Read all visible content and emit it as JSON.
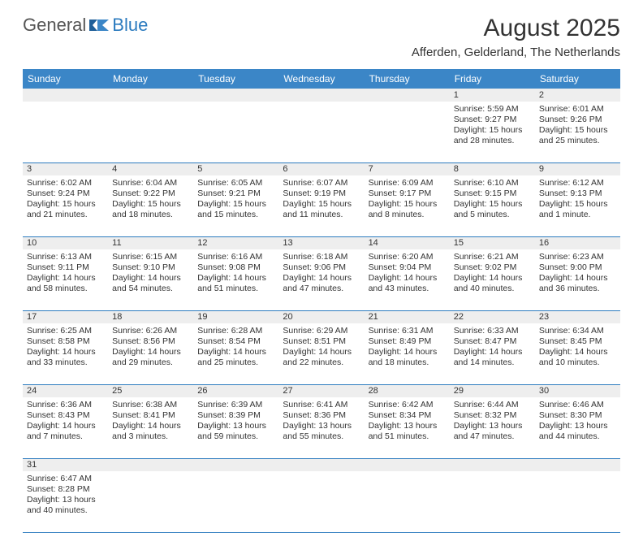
{
  "logo": {
    "textA": "General",
    "textB": "Blue"
  },
  "title": "August 2025",
  "location": "Afferden, Gelderland, The Netherlands",
  "colors": {
    "header_bg": "#3b86c7",
    "rule": "#2c7bbf",
    "daynum_bg": "#eeeeee",
    "text": "#333333",
    "logo_gray": "#555555",
    "logo_blue": "#2c7bbf"
  },
  "day_headers": [
    "Sunday",
    "Monday",
    "Tuesday",
    "Wednesday",
    "Thursday",
    "Friday",
    "Saturday"
  ],
  "weeks": [
    [
      null,
      null,
      null,
      null,
      null,
      {
        "n": "1",
        "sr": "5:59 AM",
        "ss": "9:27 PM",
        "dl": "15 hours and 28 minutes."
      },
      {
        "n": "2",
        "sr": "6:01 AM",
        "ss": "9:26 PM",
        "dl": "15 hours and 25 minutes."
      }
    ],
    [
      {
        "n": "3",
        "sr": "6:02 AM",
        "ss": "9:24 PM",
        "dl": "15 hours and 21 minutes."
      },
      {
        "n": "4",
        "sr": "6:04 AM",
        "ss": "9:22 PM",
        "dl": "15 hours and 18 minutes."
      },
      {
        "n": "5",
        "sr": "6:05 AM",
        "ss": "9:21 PM",
        "dl": "15 hours and 15 minutes."
      },
      {
        "n": "6",
        "sr": "6:07 AM",
        "ss": "9:19 PM",
        "dl": "15 hours and 11 minutes."
      },
      {
        "n": "7",
        "sr": "6:09 AM",
        "ss": "9:17 PM",
        "dl": "15 hours and 8 minutes."
      },
      {
        "n": "8",
        "sr": "6:10 AM",
        "ss": "9:15 PM",
        "dl": "15 hours and 5 minutes."
      },
      {
        "n": "9",
        "sr": "6:12 AM",
        "ss": "9:13 PM",
        "dl": "15 hours and 1 minute."
      }
    ],
    [
      {
        "n": "10",
        "sr": "6:13 AM",
        "ss": "9:11 PM",
        "dl": "14 hours and 58 minutes."
      },
      {
        "n": "11",
        "sr": "6:15 AM",
        "ss": "9:10 PM",
        "dl": "14 hours and 54 minutes."
      },
      {
        "n": "12",
        "sr": "6:16 AM",
        "ss": "9:08 PM",
        "dl": "14 hours and 51 minutes."
      },
      {
        "n": "13",
        "sr": "6:18 AM",
        "ss": "9:06 PM",
        "dl": "14 hours and 47 minutes."
      },
      {
        "n": "14",
        "sr": "6:20 AM",
        "ss": "9:04 PM",
        "dl": "14 hours and 43 minutes."
      },
      {
        "n": "15",
        "sr": "6:21 AM",
        "ss": "9:02 PM",
        "dl": "14 hours and 40 minutes."
      },
      {
        "n": "16",
        "sr": "6:23 AM",
        "ss": "9:00 PM",
        "dl": "14 hours and 36 minutes."
      }
    ],
    [
      {
        "n": "17",
        "sr": "6:25 AM",
        "ss": "8:58 PM",
        "dl": "14 hours and 33 minutes."
      },
      {
        "n": "18",
        "sr": "6:26 AM",
        "ss": "8:56 PM",
        "dl": "14 hours and 29 minutes."
      },
      {
        "n": "19",
        "sr": "6:28 AM",
        "ss": "8:54 PM",
        "dl": "14 hours and 25 minutes."
      },
      {
        "n": "20",
        "sr": "6:29 AM",
        "ss": "8:51 PM",
        "dl": "14 hours and 22 minutes."
      },
      {
        "n": "21",
        "sr": "6:31 AM",
        "ss": "8:49 PM",
        "dl": "14 hours and 18 minutes."
      },
      {
        "n": "22",
        "sr": "6:33 AM",
        "ss": "8:47 PM",
        "dl": "14 hours and 14 minutes."
      },
      {
        "n": "23",
        "sr": "6:34 AM",
        "ss": "8:45 PM",
        "dl": "14 hours and 10 minutes."
      }
    ],
    [
      {
        "n": "24",
        "sr": "6:36 AM",
        "ss": "8:43 PM",
        "dl": "14 hours and 7 minutes."
      },
      {
        "n": "25",
        "sr": "6:38 AM",
        "ss": "8:41 PM",
        "dl": "14 hours and 3 minutes."
      },
      {
        "n": "26",
        "sr": "6:39 AM",
        "ss": "8:39 PM",
        "dl": "13 hours and 59 minutes."
      },
      {
        "n": "27",
        "sr": "6:41 AM",
        "ss": "8:36 PM",
        "dl": "13 hours and 55 minutes."
      },
      {
        "n": "28",
        "sr": "6:42 AM",
        "ss": "8:34 PM",
        "dl": "13 hours and 51 minutes."
      },
      {
        "n": "29",
        "sr": "6:44 AM",
        "ss": "8:32 PM",
        "dl": "13 hours and 47 minutes."
      },
      {
        "n": "30",
        "sr": "6:46 AM",
        "ss": "8:30 PM",
        "dl": "13 hours and 44 minutes."
      }
    ],
    [
      {
        "n": "31",
        "sr": "6:47 AM",
        "ss": "8:28 PM",
        "dl": "13 hours and 40 minutes."
      },
      null,
      null,
      null,
      null,
      null,
      null
    ]
  ],
  "labels": {
    "sunrise": "Sunrise:",
    "sunset": "Sunset:",
    "daylight": "Daylight:"
  }
}
